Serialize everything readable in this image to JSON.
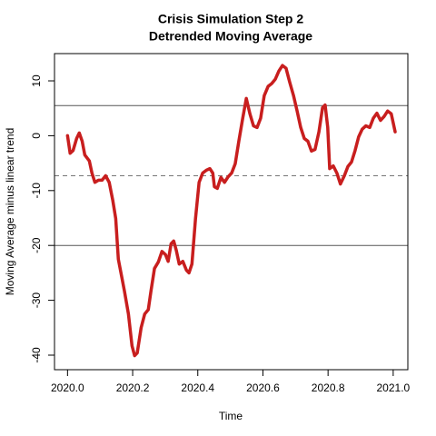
{
  "chart_data": {
    "type": "line",
    "title": "Crisis Simulation Step 2",
    "subtitle": "Detrended Moving Average",
    "x_label": "Time",
    "y_label": "Moving Average minus linear trend",
    "xlim": [
      2019.96,
      2021.045
    ],
    "ylim": [
      -42.65,
      14.97
    ],
    "xticks": [
      {
        "value": 2020.0,
        "label": "2020.0"
      },
      {
        "value": 2020.2,
        "label": "2020.2"
      },
      {
        "value": 2020.4,
        "label": "2020.4"
      },
      {
        "value": 2020.6,
        "label": "2020.6"
      },
      {
        "value": 2020.8,
        "label": "2020.8"
      },
      {
        "value": 2021.0,
        "label": "2021.0"
      }
    ],
    "yticks": [
      -40,
      -30,
      -20,
      -10,
      0,
      10
    ],
    "hlines": [
      {
        "value": 5.5,
        "style": "solid",
        "color": "#555555"
      },
      {
        "value": -20,
        "style": "solid",
        "color": "#555555"
      },
      {
        "value": -7.3,
        "style": "dashed",
        "color": "#777777"
      }
    ],
    "series": [
      {
        "name": "Detrended moving average",
        "color": "#c81e1e",
        "x": [
          2020.0,
          2020.008,
          2020.017,
          2020.028,
          2020.036,
          2020.045,
          2020.053,
          2020.067,
          2020.075,
          2020.084,
          2020.095,
          2020.106,
          2020.117,
          2020.128,
          2020.139,
          2020.148,
          2020.156,
          2020.167,
          2020.175,
          2020.187,
          2020.198,
          2020.206,
          2020.214,
          2020.226,
          2020.237,
          2020.248,
          2020.256,
          2020.267,
          2020.279,
          2020.29,
          2020.301,
          2020.309,
          2020.318,
          2020.326,
          2020.334,
          2020.343,
          2020.354,
          2020.365,
          2020.373,
          2020.382,
          2020.393,
          2020.404,
          2020.415,
          2020.426,
          2020.437,
          2020.446,
          2020.451,
          2020.46,
          2020.471,
          2020.482,
          2020.493,
          2020.504,
          2020.515,
          2020.526,
          2020.538,
          2020.549,
          2020.56,
          2020.571,
          2020.582,
          2020.593,
          2020.604,
          2020.616,
          2020.627,
          2020.638,
          2020.649,
          2020.66,
          2020.671,
          2020.682,
          2020.694,
          2020.705,
          2020.716,
          2020.727,
          2020.738,
          2020.749,
          2020.76,
          2020.772,
          2020.783,
          2020.791,
          2020.799,
          2020.805,
          2020.816,
          2020.827,
          2020.838,
          2020.85,
          2020.861,
          2020.872,
          2020.883,
          2020.894,
          2020.905,
          2020.916,
          2020.928,
          2020.939,
          2020.95,
          2020.961,
          2020.972,
          2020.983,
          2020.994,
          2021.006
        ],
        "values": [
          0,
          -3.2,
          -2.7,
          -0.5,
          0.5,
          -1,
          -3.5,
          -4.6,
          -6.8,
          -8.5,
          -8.1,
          -8.1,
          -7.3,
          -8.5,
          -11.8,
          -15.1,
          -22.5,
          -25.9,
          -28.4,
          -32.5,
          -38.3,
          -40.1,
          -39.6,
          -35,
          -32.5,
          -31.7,
          -28.4,
          -24.2,
          -23,
          -21.1,
          -21.7,
          -22.9,
          -19.7,
          -19.2,
          -20.9,
          -23.4,
          -22.9,
          -24.5,
          -25,
          -23.4,
          -15.1,
          -8.5,
          -6.8,
          -6.3,
          -6,
          -6.8,
          -9.3,
          -9.6,
          -7.6,
          -8.5,
          -7.5,
          -6.8,
          -5.1,
          -1,
          3.2,
          6.8,
          4,
          1.8,
          1.5,
          3.2,
          7.3,
          9,
          9.5,
          10.3,
          11.8,
          12.8,
          12.3,
          9.8,
          7.3,
          4.5,
          1.5,
          -0.5,
          -1,
          -2.8,
          -2.5,
          0.7,
          5.1,
          5.6,
          1.5,
          -6,
          -5.5,
          -6.8,
          -8.8,
          -7.3,
          -5.6,
          -4.8,
          -2.7,
          -0.2,
          1.2,
          1.8,
          1.5,
          3.2,
          4.1,
          2.8,
          3.5,
          4.5,
          4,
          0.7
        ]
      }
    ]
  }
}
